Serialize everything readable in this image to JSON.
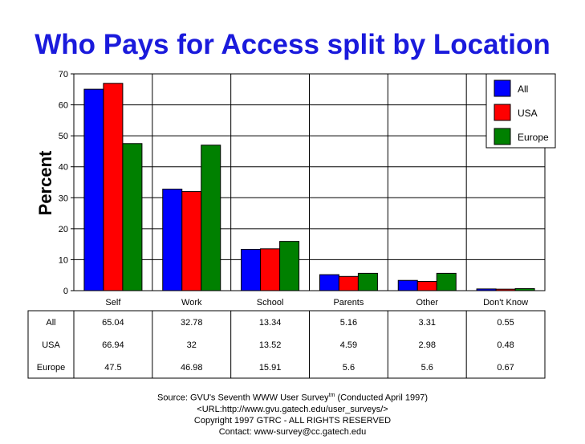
{
  "chart_data": {
    "type": "bar",
    "title": "Who Pays for Access split by Location",
    "ylabel": "Percent",
    "xlabel": "",
    "ylim": [
      0,
      70
    ],
    "yticks": [
      0,
      10,
      20,
      30,
      40,
      50,
      60,
      70
    ],
    "grid": true,
    "legend_position": "top-right",
    "categories": [
      "Self",
      "Work",
      "School",
      "Parents",
      "Other",
      "Don't Know"
    ],
    "series": [
      {
        "name": "All",
        "color": "#0000ff",
        "values": [
          65.04,
          32.78,
          13.34,
          5.16,
          3.31,
          0.55
        ],
        "labels": [
          "65.04",
          "32.78",
          "13.34",
          "5.16",
          "3.31",
          "0.55"
        ]
      },
      {
        "name": "USA",
        "color": "#ff0000",
        "values": [
          66.94,
          32,
          13.52,
          4.59,
          2.98,
          0.48
        ],
        "labels": [
          "66.94",
          "32",
          "13.52",
          "4.59",
          "2.98",
          "0.48"
        ]
      },
      {
        "name": "Europe",
        "color": "#008000",
        "values": [
          47.5,
          46.98,
          15.91,
          5.6,
          5.6,
          0.67
        ],
        "labels": [
          "47.5",
          "46.98",
          "15.91",
          "5.6",
          "5.6",
          "0.67"
        ]
      }
    ]
  },
  "footer": {
    "source_prefix": "Source: GVU's Seventh WWW User Survey",
    "source_sup": "tm",
    "source_suffix": " (Conducted April 1997)",
    "url": "<URL:http://www.gvu.gatech.edu/user_surveys/>",
    "copyright": "Copyright 1997 GTRC - ALL RIGHTS RESERVED",
    "contact": "Contact: www-survey@cc.gatech.edu"
  }
}
